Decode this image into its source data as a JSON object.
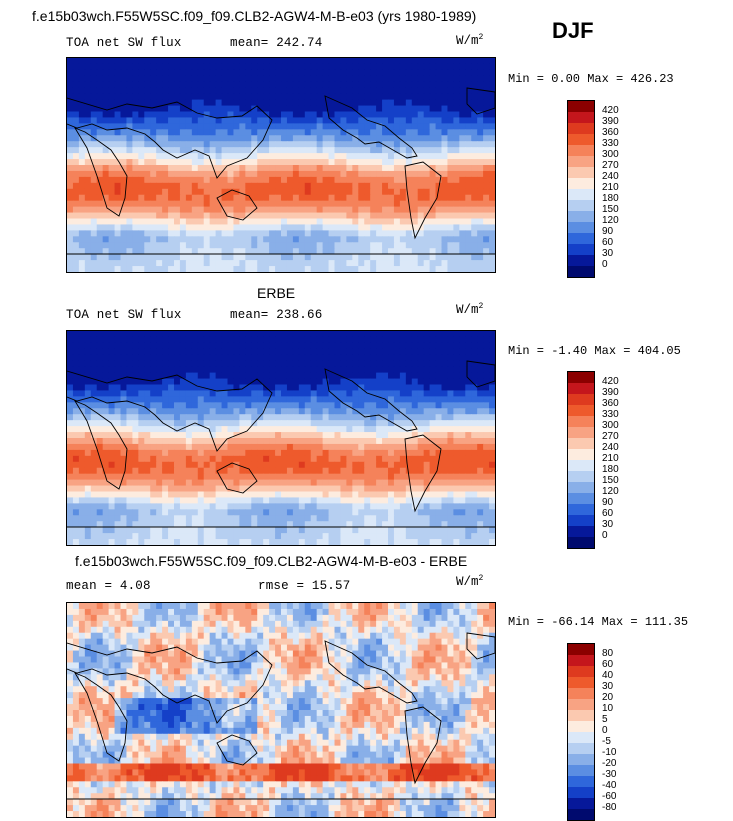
{
  "header": {
    "case_title": "f.e15b03wch.F55W5SC.f09_f09.CLB2-AGW4-M-B-e03 (yrs 1980-1989)",
    "season": "DJF"
  },
  "panels": [
    {
      "id": "model",
      "title": "",
      "variable": "TOA net SW flux",
      "mean_label": "mean= 242.74",
      "rmse_label": "",
      "units": "W/m",
      "units_exp": "2",
      "minmax": "Min =   0.00 Max = 426.23",
      "colorbar": {
        "labels": [
          "420",
          "390",
          "360",
          "330",
          "300",
          "270",
          "240",
          "210",
          "180",
          "150",
          "120",
          "90",
          "60",
          "30",
          "0"
        ],
        "colors": [
          "#8b0000",
          "#c4161c",
          "#de3a1f",
          "#ee5a2c",
          "#f5825a",
          "#f8a383",
          "#fbc9b0",
          "#fdecdf",
          "#dbe8f8",
          "#b6cff1",
          "#89afe8",
          "#5b8ee2",
          "#2f67db",
          "#1440c8",
          "#06189a",
          "#000a6e"
        ]
      },
      "field": "abs"
    },
    {
      "id": "obs",
      "title": "ERBE",
      "variable": "TOA net SW flux",
      "mean_label": "mean= 238.66",
      "rmse_label": "",
      "units": "W/m",
      "units_exp": "2",
      "minmax": "Min =  -1.40 Max = 404.05",
      "colorbar": {
        "labels": [
          "420",
          "390",
          "360",
          "330",
          "300",
          "270",
          "240",
          "210",
          "180",
          "150",
          "120",
          "90",
          "60",
          "30",
          "0"
        ],
        "colors": [
          "#8b0000",
          "#c4161c",
          "#de3a1f",
          "#ee5a2c",
          "#f5825a",
          "#f8a383",
          "#fbc9b0",
          "#fdecdf",
          "#dbe8f8",
          "#b6cff1",
          "#89afe8",
          "#5b8ee2",
          "#2f67db",
          "#1440c8",
          "#06189a",
          "#000a6e"
        ]
      },
      "field": "abs"
    },
    {
      "id": "diff",
      "title": "f.e15b03wch.F55W5SC.f09_f09.CLB2-AGW4-M-B-e03 - ERBE",
      "variable": "",
      "mean_label": "mean =    4.08",
      "rmse_label": "rmse =   15.57",
      "units": "W/m",
      "units_exp": "2",
      "minmax": "Min = -66.14 Max = 111.35",
      "colorbar": {
        "labels": [
          "80",
          "60",
          "40",
          "30",
          "20",
          "10",
          "5",
          "0",
          "-5",
          "-10",
          "-20",
          "-30",
          "-40",
          "-60",
          "-80"
        ],
        "colors": [
          "#8b0000",
          "#c4161c",
          "#de3a1f",
          "#ee5a2c",
          "#f5825a",
          "#f8a383",
          "#fbc9b0",
          "#fdecdf",
          "#dbe8f8",
          "#b6cff1",
          "#89afe8",
          "#5b8ee2",
          "#2f67db",
          "#1440c8",
          "#06189a",
          "#000a6e"
        ]
      },
      "field": "diff"
    }
  ],
  "chart_data": {
    "type": "heatmap",
    "title": "TOA net SW flux, DJF",
    "projection": "cylindrical equidistant, 0-360E, 90S-90N",
    "series": [
      {
        "name": "f.e15b03wch.F55W5SC.f09_f09.CLB2-AGW4-M-B-e03",
        "mean": 242.74,
        "min": 0.0,
        "max": 426.23,
        "units": "W/m2"
      },
      {
        "name": "ERBE",
        "mean": 238.66,
        "min": -1.4,
        "max": 404.05,
        "units": "W/m2"
      },
      {
        "name": "model - ERBE",
        "mean": 4.08,
        "rmse": 15.57,
        "min": -66.14,
        "max": 111.35,
        "units": "W/m2"
      }
    ],
    "abs_levels": [
      0,
      30,
      60,
      90,
      120,
      150,
      180,
      210,
      240,
      270,
      300,
      330,
      360,
      390,
      420
    ],
    "diff_levels": [
      -80,
      -60,
      -40,
      -30,
      -20,
      -10,
      -5,
      0,
      5,
      10,
      20,
      30,
      40,
      60,
      80
    ]
  }
}
